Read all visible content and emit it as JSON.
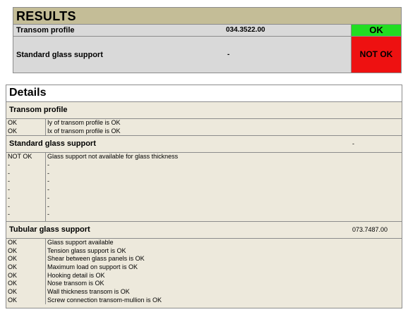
{
  "results": {
    "title": "RESULTS",
    "rows": [
      {
        "label": "Transom profile",
        "value": "034.3522.00",
        "status": "OK",
        "status_color": "#22dd22"
      },
      {
        "label": "Standard glass support",
        "value": "-",
        "status": "NOT OK",
        "status_color": "#ee1111"
      }
    ]
  },
  "details": {
    "title": "Details",
    "sections": [
      {
        "title": "Transom profile",
        "value": "",
        "lines": [
          {
            "status": "OK",
            "message": "Iy of transom profile is OK"
          },
          {
            "status": "OK",
            "message": "Ix of transom profile is OK"
          }
        ]
      },
      {
        "title": "Standard glass support",
        "value": "-",
        "lines": [
          {
            "status": "NOT OK",
            "message": "Glass support not available for glass thickness"
          },
          {
            "status": "-",
            "message": "-"
          },
          {
            "status": "-",
            "message": "-"
          },
          {
            "status": "-",
            "message": "-"
          },
          {
            "status": "-",
            "message": "-"
          },
          {
            "status": "-",
            "message": "-"
          },
          {
            "status": "-",
            "message": "-"
          },
          {
            "status": "-",
            "message": "-"
          }
        ]
      },
      {
        "title": "Tubular glass support",
        "value": "073.7487.00",
        "lines": [
          {
            "status": "OK",
            "message": "Glass support available"
          },
          {
            "status": "OK",
            "message": "Tension glass support is OK"
          },
          {
            "status": "OK",
            "message": "Shear between glass panels is OK"
          },
          {
            "status": "OK",
            "message": "Maximum load on support is OK"
          },
          {
            "status": "OK",
            "message": "Hooking detail is OK"
          },
          {
            "status": "OK",
            "message": "Nose transom is OK"
          },
          {
            "status": "OK",
            "message": "Wall thickness transom is OK"
          },
          {
            "status": "OK",
            "message": "Screw connection transom-mullion is OK"
          }
        ]
      }
    ]
  }
}
